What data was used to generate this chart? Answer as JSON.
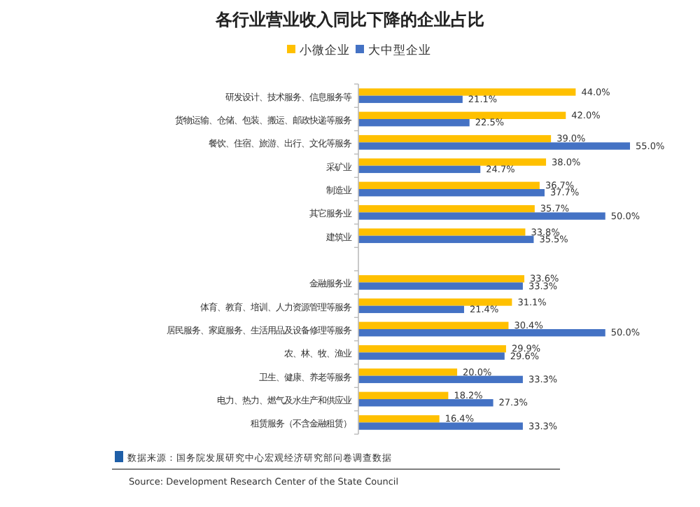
{
  "chart_data": {
    "type": "bar",
    "orientation": "horizontal",
    "title": "各行业营业收入同比下降的企业占比",
    "categories": [
      "研发设计、技术服务、信息服务等",
      "货物运输、仓储、包装、搬运、邮政快递等服务",
      "餐饮、住宿、旅游、出行、文化等服务",
      "采矿业",
      "制造业",
      "其它服务业",
      "建筑业",
      null,
      "金融服务业",
      "体育、教育、培训、人力资源管理等服务",
      "居民服务、家庭服务、生活用品及设备修理等服务",
      "农、林、牧、渔业",
      "卫生、健康、养老等服务",
      "电力、热力、燃气及水生产和供应业",
      "租赁服务（不含金融租赁）"
    ],
    "series": [
      {
        "name": "小微企业",
        "color": "#ffc000",
        "values": [
          44.0,
          42.0,
          39.0,
          38.0,
          36.7,
          35.7,
          33.8,
          null,
          33.6,
          31.1,
          30.4,
          29.9,
          20.0,
          18.2,
          16.4
        ],
        "value_labels": [
          "44.0%",
          "42.0%",
          "39.0%",
          "38.0%",
          "36.7%",
          "35.7%",
          "33.8%",
          null,
          "33.6%",
          "31.1%",
          "30.4%",
          "29.9%",
          "20.0%",
          "18.2%",
          "16.4%"
        ]
      },
      {
        "name": "大中型企业",
        "color": "#4472c4",
        "values": [
          21.1,
          22.5,
          55.0,
          24.7,
          37.7,
          50.0,
          35.5,
          null,
          33.3,
          21.4,
          50.0,
          29.6,
          33.3,
          27.3,
          33.3
        ],
        "value_labels": [
          "21.1%",
          "22.5%",
          "55.0%",
          "24.7%",
          "37.7%",
          "50.0%",
          "35.5%",
          null,
          "33.3%",
          "21.4%",
          "50.0%",
          "29.6%",
          "33.3%",
          "27.3%",
          "33.3%"
        ]
      }
    ],
    "legend": "top",
    "annotations": [
      "数据来源：国务院发展研究中心宏观经济研究部问卷调查数据",
      "Source: Development Research Center of the State Council"
    ]
  }
}
